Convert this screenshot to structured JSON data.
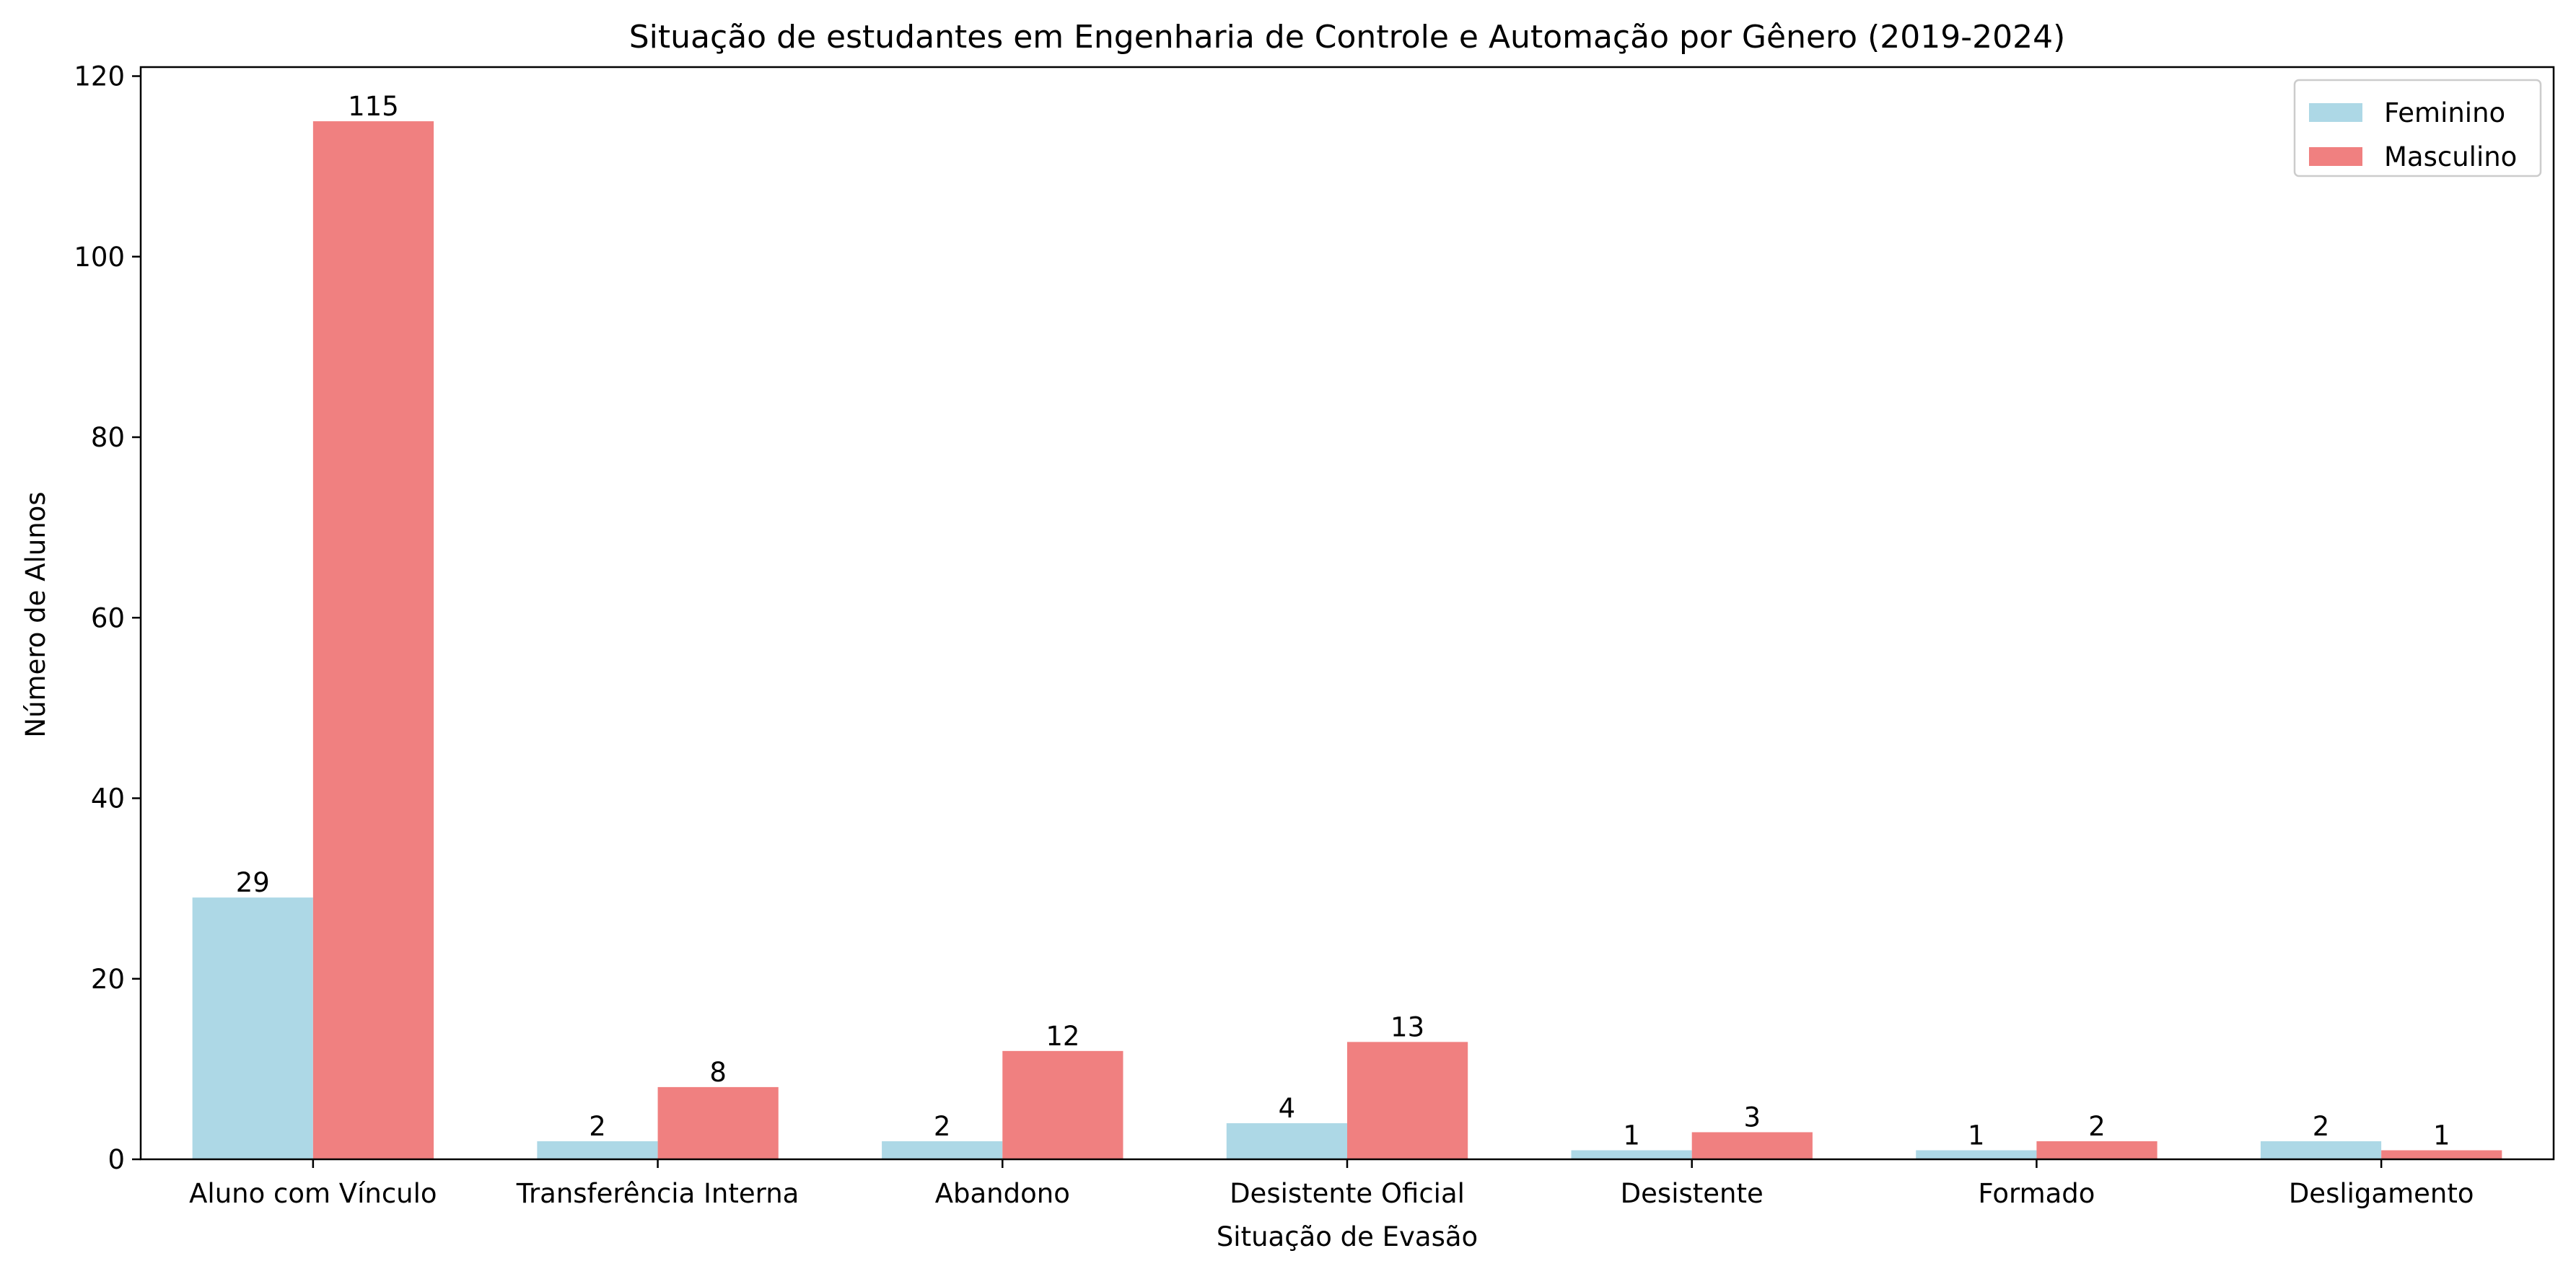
{
  "chart_data": {
    "type": "bar",
    "title": "Situação de estudantes em Engenharia de Controle e Automação por Gênero (2019-2024)",
    "xlabel": "Situação de Evasão",
    "ylabel": "Número de Alunos",
    "categories": [
      "Aluno com Vínculo",
      "Transferência Interna",
      "Abandono",
      "Desistente Oficial",
      "Desistente",
      "Formado",
      "Desligamento"
    ],
    "series": [
      {
        "name": "Feminino",
        "color": "#add8e6",
        "values": [
          29,
          2,
          2,
          4,
          1,
          1,
          2
        ]
      },
      {
        "name": "Masculino",
        "color": "#f08080",
        "values": [
          115,
          8,
          12,
          13,
          3,
          2,
          1
        ]
      }
    ],
    "ylim": [
      0,
      121
    ],
    "yticks": [
      0,
      20,
      40,
      60,
      80,
      100,
      120
    ],
    "grid": false,
    "legend_position": "top-right"
  }
}
